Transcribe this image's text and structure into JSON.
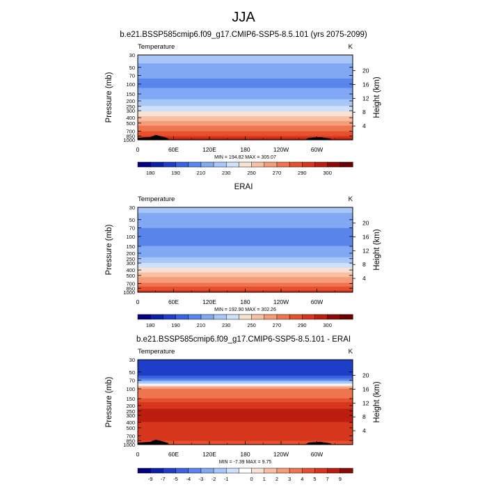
{
  "figure": {
    "title": "JJA"
  },
  "colors": {
    "temp_palette": [
      "#000080",
      "#0d1fa6",
      "#1f3fc8",
      "#3a63e0",
      "#5a86ec",
      "#80a8f3",
      "#a8c6f7",
      "#cfe0fa",
      "#f7e1d3",
      "#f7c0a5",
      "#f59c78",
      "#ee7550",
      "#e5502e",
      "#d6361c",
      "#bb1e10",
      "#8c0a06",
      "#6b0000"
    ],
    "diff_palette": [
      "#000080",
      "#0d1fa6",
      "#1f3fc8",
      "#3a63e0",
      "#5a86ec",
      "#80a8f3",
      "#a8c6f7",
      "#cfe0fa",
      "#ffffff",
      "#f7e1d3",
      "#f7c0a5",
      "#f59c78",
      "#ee7550",
      "#e5502e",
      "#d6361c",
      "#bb1e10",
      "#8c0a06"
    ],
    "terrain": "#000000"
  },
  "chart_data": [
    {
      "type": "heatmap",
      "title": "b.e21.BSSP585cmip6.f09_g17.CMIP6-SSP5-8.5.101 (yrs 2075-2099)",
      "left_label": "Temperature",
      "right_label": "K",
      "ylabel": "Pressure (mb)",
      "y2label": "Height (km)",
      "x_ticks": [
        "0",
        "60E",
        "120E",
        "180",
        "120W",
        "60W"
      ],
      "y_ticks": [
        "30",
        "50",
        "70",
        "100",
        "150",
        "200",
        "250",
        "300",
        "400",
        "500",
        "700",
        "850",
        "1000"
      ],
      "y2_ticks": [
        "20",
        "16",
        "12",
        "8",
        "4"
      ],
      "stats": "MIN = 194.82  MAX = 305.07",
      "colorbar": [
        "180",
        "190",
        "210",
        "230",
        "250",
        "270",
        "290",
        "300"
      ],
      "profile": [
        {
          "p": 30,
          "v": 225
        },
        {
          "p": 50,
          "v": 218
        },
        {
          "p": 70,
          "v": 212
        },
        {
          "p": 100,
          "v": 207
        },
        {
          "p": 150,
          "v": 214
        },
        {
          "p": 200,
          "v": 222
        },
        {
          "p": 250,
          "v": 230
        },
        {
          "p": 300,
          "v": 238
        },
        {
          "p": 400,
          "v": 253
        },
        {
          "p": 500,
          "v": 264
        },
        {
          "p": 700,
          "v": 280
        },
        {
          "p": 850,
          "v": 290
        },
        {
          "p": 1000,
          "v": 300
        }
      ]
    },
    {
      "type": "heatmap",
      "title": "ERAI",
      "left_label": "Temperature",
      "right_label": "K",
      "ylabel": "Pressure (mb)",
      "y2label": "Height (km)",
      "x_ticks": [
        "0",
        "60E",
        "120E",
        "180",
        "120W",
        "60W"
      ],
      "y_ticks": [
        "30",
        "50",
        "70",
        "100",
        "150",
        "200",
        "250",
        "300",
        "400",
        "500",
        "700",
        "850",
        "1000"
      ],
      "y2_ticks": [
        "20",
        "16",
        "12",
        "8",
        "4"
      ],
      "stats": "MIN = 192.90  MAX = 302.26",
      "colorbar": [
        "180",
        "190",
        "210",
        "230",
        "250",
        "270",
        "290",
        "300"
      ],
      "profile": [
        {
          "p": 30,
          "v": 223
        },
        {
          "p": 50,
          "v": 216
        },
        {
          "p": 70,
          "v": 210
        },
        {
          "p": 100,
          "v": 205
        },
        {
          "p": 150,
          "v": 210
        },
        {
          "p": 200,
          "v": 216
        },
        {
          "p": 250,
          "v": 222
        },
        {
          "p": 300,
          "v": 230
        },
        {
          "p": 400,
          "v": 245
        },
        {
          "p": 500,
          "v": 256
        },
        {
          "p": 700,
          "v": 272
        },
        {
          "p": 850,
          "v": 283
        },
        {
          "p": 1000,
          "v": 294
        }
      ]
    },
    {
      "type": "heatmap",
      "title": "b.e21.BSSP585cmip6.f09_g17.CMIP6-SSP5-8.5.101 - ERAI",
      "left_label": "Temperature",
      "right_label": "K",
      "ylabel": "Pressure (mb)",
      "y2label": "Height (km)",
      "x_ticks": [
        "0",
        "60E",
        "120E",
        "180",
        "120W",
        "60W"
      ],
      "y_ticks": [
        "30",
        "50",
        "70",
        "100",
        "150",
        "200",
        "250",
        "300",
        "400",
        "500",
        "700",
        "850",
        "1000"
      ],
      "y2_ticks": [
        "20",
        "16",
        "12",
        "8",
        "4"
      ],
      "stats": "MIN = -7.39  MAX =  9.75",
      "colorbar": [
        "-9",
        "-7",
        "-5",
        "-4",
        "-3",
        "-2",
        "-1",
        "0",
        "1",
        "2",
        "3",
        "4",
        "5",
        "7",
        "9"
      ],
      "profile": [
        {
          "p": 30,
          "v": -6
        },
        {
          "p": 50,
          "v": -7
        },
        {
          "p": 70,
          "v": -3
        },
        {
          "p": 100,
          "v": 3
        },
        {
          "p": 150,
          "v": 4
        },
        {
          "p": 200,
          "v": 6
        },
        {
          "p": 250,
          "v": 8
        },
        {
          "p": 300,
          "v": 8.5
        },
        {
          "p": 400,
          "v": 7
        },
        {
          "p": 500,
          "v": 6
        },
        {
          "p": 700,
          "v": 5
        },
        {
          "p": 850,
          "v": 5
        },
        {
          "p": 1000,
          "v": 4
        }
      ]
    }
  ]
}
